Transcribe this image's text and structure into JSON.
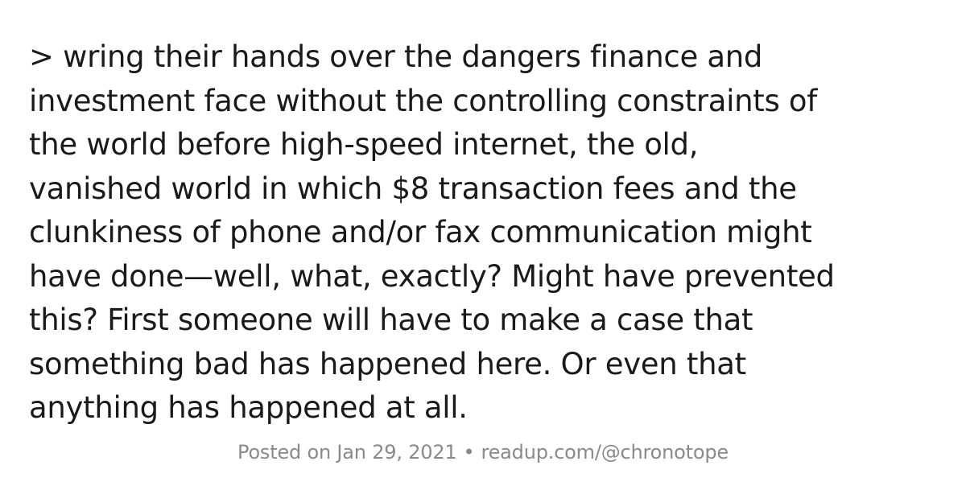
{
  "quote": {
    "lines": [
      "> wring their hands over the dangers finance and",
      "investment face without the controlling constraints of",
      "the world before high-speed internet, the old,",
      "vanished world in which $8 transaction fees and the",
      "clunkiness of phone and/or fax communication might",
      "have done—well, what, exactly? Might have prevented",
      "this? First someone will have to make a case that",
      "something bad has happened here. Or even that",
      "anything has happened at all."
    ]
  },
  "footer": {
    "posted": "Posted on Jan 29, 2021",
    "separator": "•",
    "profile": "readup.com/@chronotope"
  },
  "colors": {
    "text": "#1a1a1a",
    "footer_text": "#8a8a8a",
    "background": "#ffffff"
  }
}
